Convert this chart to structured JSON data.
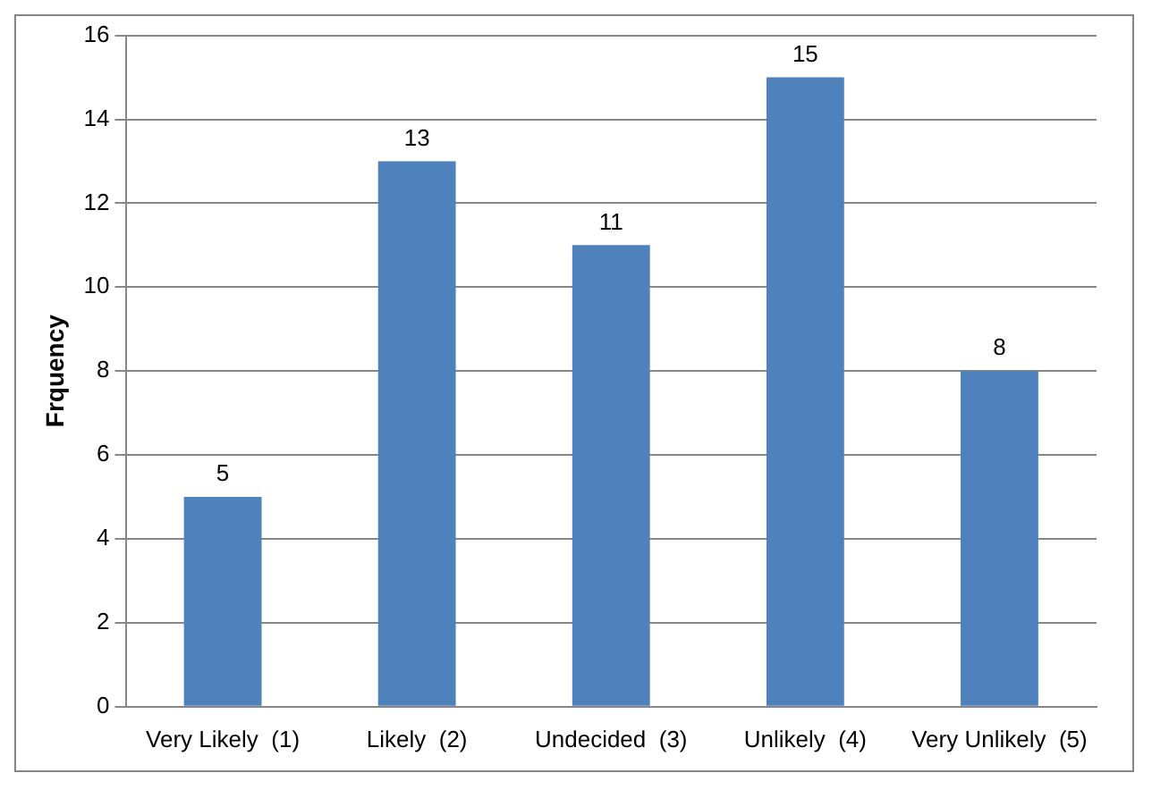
{
  "chart_data": {
    "type": "bar",
    "ylabel": "Frquency",
    "categories": [
      "Very Likely  (1)",
      "Likely  (2)",
      "Undecided  (3)",
      "Unlikely  (4)",
      "Very Unlikely  (5)"
    ],
    "values": [
      5,
      13,
      11,
      15,
      8
    ],
    "color": "#4f81bd",
    "ylim": [
      0,
      16
    ],
    "yticks": [
      0,
      2,
      4,
      6,
      8,
      10,
      12,
      14,
      16
    ],
    "grid": "y",
    "data_labels": true,
    "legend": false
  }
}
